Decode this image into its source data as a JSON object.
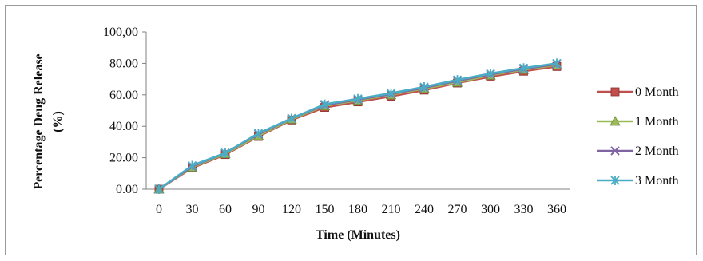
{
  "chart_data": {
    "type": "line",
    "title": "",
    "xlabel": "Time (Minutes)",
    "ylabel_line1": "Percentage Deug Release",
    "ylabel_line2": "(%)",
    "x": [
      0,
      30,
      60,
      90,
      120,
      150,
      180,
      210,
      240,
      270,
      300,
      330,
      360
    ],
    "y_ticks": [
      "0.00",
      "20.00",
      "40.00",
      "60.00",
      "80.00",
      "100,00"
    ],
    "ylim": [
      0,
      100
    ],
    "grid": false,
    "legend_position": "right",
    "series": [
      {
        "name": "0 Month",
        "color": "#c0504d",
        "marker": "square",
        "values": [
          0,
          13.5,
          22,
          33.5,
          44,
          52,
          55.5,
          59,
          63,
          67.5,
          71.5,
          75,
          78
        ]
      },
      {
        "name": "1 Month",
        "color": "#9bbb59",
        "marker": "triangle",
        "values": [
          0,
          14,
          22.5,
          34,
          44.5,
          53,
          56.5,
          60,
          64,
          68,
          72.5,
          76,
          79
        ]
      },
      {
        "name": "2 Month",
        "color": "#8064a2",
        "marker": "x",
        "values": [
          0,
          14.5,
          23,
          35,
          45,
          53.5,
          57,
          60.5,
          64.5,
          69,
          73,
          76.5,
          79.5
        ]
      },
      {
        "name": "3 Month",
        "color": "#4bacc6",
        "marker": "star",
        "values": [
          0,
          15,
          23,
          35.5,
          45,
          54,
          57.5,
          61,
          65,
          69.5,
          73.5,
          77,
          80
        ]
      }
    ]
  }
}
